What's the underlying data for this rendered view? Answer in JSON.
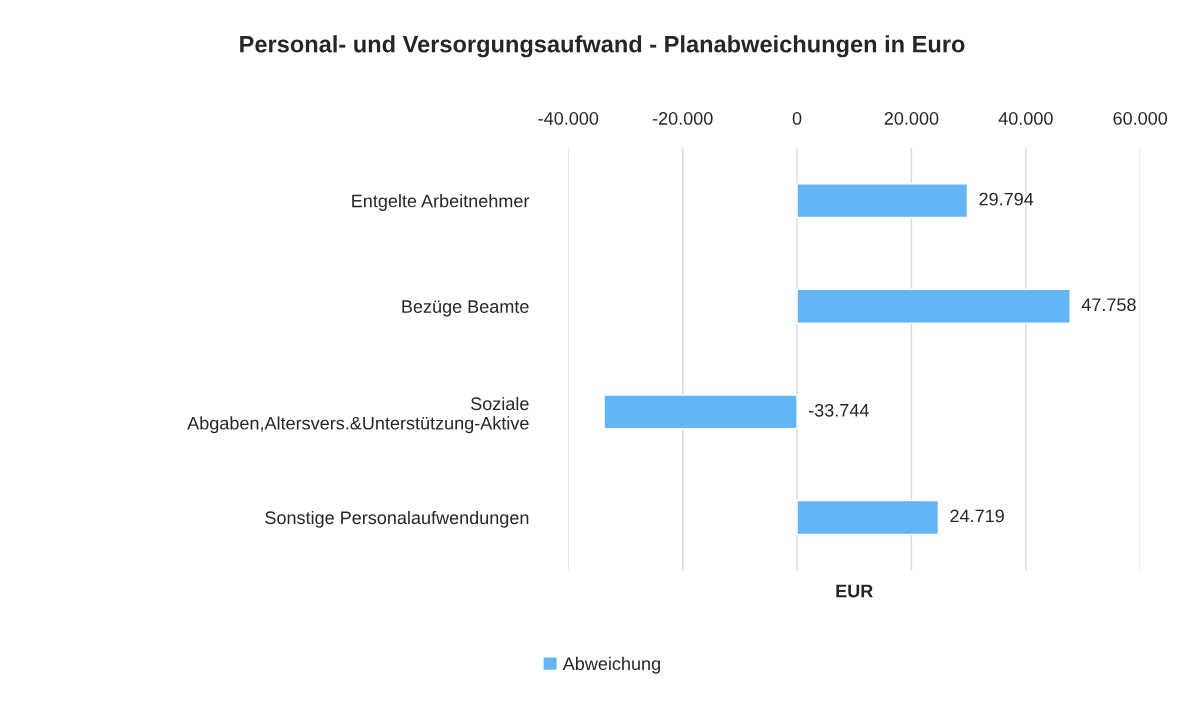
{
  "chart_data": {
    "type": "bar",
    "orientation": "horizontal",
    "title": "Personal- und Versorgungsaufwand - Planabweichungen in Euro",
    "xlabel": "EUR",
    "categories": [
      "Entgelte Arbeitnehmer",
      "Bezüge Beamte",
      "Soziale\nAbgaben,Altersvers.&Unterstützung-Aktive",
      "Sonstige Personalaufwendungen"
    ],
    "series": [
      {
        "name": "Abweichung",
        "color": "#63b5f5",
        "values": [
          29794,
          47758,
          -33744,
          24719
        ],
        "value_labels": [
          "29.794",
          "47.758",
          "-33.744",
          "24.719"
        ]
      }
    ],
    "xlim": [
      -40000,
      60000
    ],
    "xticks": [
      {
        "value": -40000,
        "label": "-40.000"
      },
      {
        "value": -20000,
        "label": "-20.000"
      },
      0,
      {
        "value": 20000,
        "label": "20.000"
      },
      {
        "value": 40000,
        "label": "40.000"
      },
      {
        "value": 60000,
        "label": "60.000"
      }
    ],
    "grid": "x",
    "legend": "bottom"
  }
}
